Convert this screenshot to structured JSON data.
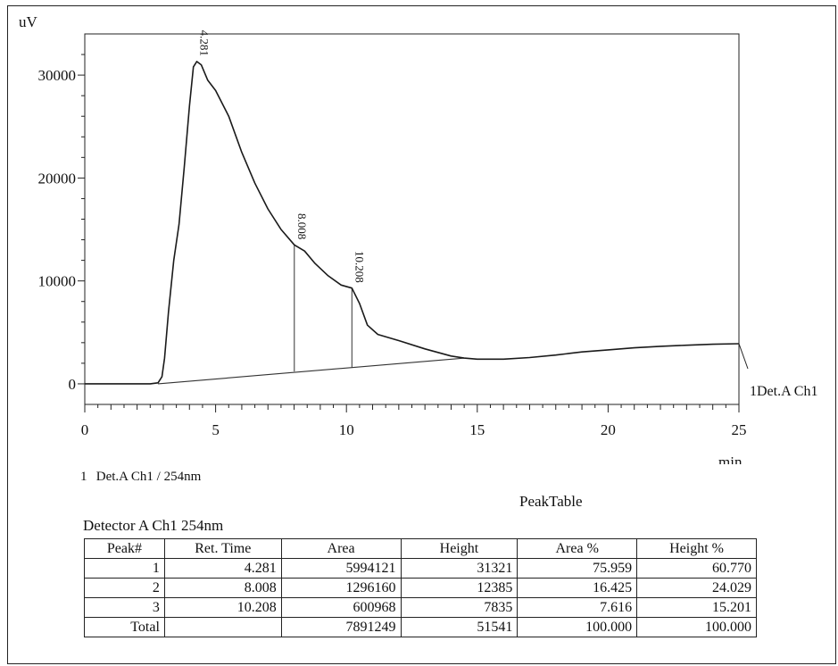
{
  "chart_data": {
    "type": "line",
    "ylabel": "uV",
    "xlabel": "min",
    "xlim": [
      0,
      25
    ],
    "ylim": [
      -2000,
      34000
    ],
    "x_ticks": [
      0,
      5,
      10,
      15,
      20,
      25
    ],
    "y_ticks": [
      0,
      10000,
      20000,
      30000
    ],
    "series_label": "1Det.A Ch1",
    "series": [
      {
        "values_xy": [
          [
            0,
            0
          ],
          [
            2.5,
            0
          ],
          [
            2.8,
            100
          ],
          [
            2.95,
            700
          ],
          [
            3.05,
            2500
          ],
          [
            3.2,
            7000
          ],
          [
            3.4,
            12000
          ],
          [
            3.6,
            15500
          ],
          [
            3.8,
            21000
          ],
          [
            4.0,
            27000
          ],
          [
            4.15,
            30800
          ],
          [
            4.281,
            31321
          ],
          [
            4.45,
            31000
          ],
          [
            4.7,
            29500
          ],
          [
            5.0,
            28500
          ],
          [
            5.5,
            26000
          ],
          [
            6.0,
            22500
          ],
          [
            6.5,
            19500
          ],
          [
            7.0,
            17000
          ],
          [
            7.5,
            15000
          ],
          [
            8.008,
            13500
          ],
          [
            8.4,
            12900
          ],
          [
            8.8,
            11700
          ],
          [
            9.3,
            10500
          ],
          [
            9.8,
            9600
          ],
          [
            10.208,
            9300
          ],
          [
            10.5,
            7800
          ],
          [
            10.8,
            5700
          ],
          [
            11.2,
            4800
          ],
          [
            12.0,
            4200
          ],
          [
            13.0,
            3400
          ],
          [
            14.0,
            2700
          ],
          [
            14.5,
            2500
          ],
          [
            15.0,
            2400
          ],
          [
            16.0,
            2400
          ],
          [
            17.0,
            2550
          ],
          [
            18.0,
            2800
          ],
          [
            19.0,
            3100
          ],
          [
            20.0,
            3300
          ],
          [
            21.0,
            3500
          ],
          [
            22.0,
            3650
          ],
          [
            23.0,
            3750
          ],
          [
            24.0,
            3850
          ],
          [
            25.0,
            3900
          ]
        ]
      }
    ],
    "baseline": [
      [
        2.8,
        0
      ],
      [
        14.5,
        2500
      ]
    ],
    "peaks": [
      {
        "label": "4.281",
        "x": 4.281
      },
      {
        "label": "8.008",
        "x": 8.008,
        "drop_line": [
          1200,
          13500
        ]
      },
      {
        "label": "10.208",
        "x": 10.208,
        "drop_line": [
          1600,
          9300
        ]
      }
    ]
  },
  "legend_text": {
    "num": "1",
    "label": "Det.A Ch1 / 254nm"
  },
  "peak_table": {
    "title": "PeakTable",
    "detector": "Detector A Ch1 254nm",
    "headers": [
      "Peak#",
      "Ret. Time",
      "Area",
      "Height",
      "Area %",
      "Height %"
    ],
    "rows": [
      [
        "1",
        "4.281",
        "5994121",
        "31321",
        "75.959",
        "60.770"
      ],
      [
        "2",
        "8.008",
        "1296160",
        "12385",
        "16.425",
        "24.029"
      ],
      [
        "3",
        "10.208",
        "600968",
        "7835",
        "7.616",
        "15.201"
      ],
      [
        "Total",
        "",
        "7891249",
        "51541",
        "100.000",
        "100.000"
      ]
    ]
  }
}
